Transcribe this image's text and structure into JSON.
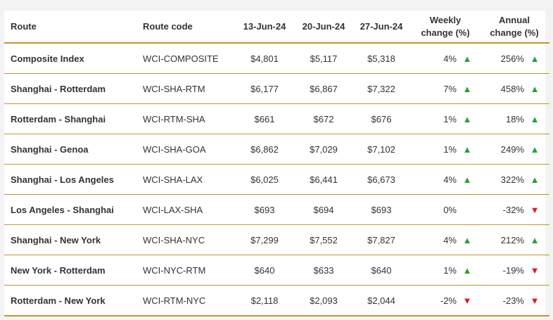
{
  "headers": {
    "route": "Route",
    "route_code": "Route code",
    "date1": "13-Jun-24",
    "date2": "20-Jun-24",
    "date3": "27-Jun-24",
    "weekly_l1": "Weekly",
    "weekly_l2": "change (%)",
    "annual_l1": "Annual",
    "annual_l2": "change (%)"
  },
  "colors": {
    "accent_border": "#c0962f",
    "up": "#1fa52c",
    "down": "#e01a1a"
  },
  "rows": [
    {
      "route": "Composite Index",
      "code": "WCI-COMPOSITE",
      "d1": "$4,801",
      "d2": "$5,117",
      "d3": "$5,318",
      "weekly": "4%",
      "weekly_dir": "up",
      "annual": "256%",
      "annual_dir": "up"
    },
    {
      "route": "Shanghai - Rotterdam",
      "code": "WCI-SHA-RTM",
      "d1": "$6,177",
      "d2": "$6,867",
      "d3": "$7,322",
      "weekly": "7%",
      "weekly_dir": "up",
      "annual": "458%",
      "annual_dir": "up"
    },
    {
      "route": "Rotterdam - Shanghai",
      "code": "WCI-RTM-SHA",
      "d1": "$661",
      "d2": "$672",
      "d3": "$676",
      "weekly": "1%",
      "weekly_dir": "up",
      "annual": "18%",
      "annual_dir": "up"
    },
    {
      "route": "Shanghai - Genoa",
      "code": "WCI-SHA-GOA",
      "d1": "$6,862",
      "d2": "$7,029",
      "d3": "$7,102",
      "weekly": "1%",
      "weekly_dir": "up",
      "annual": "249%",
      "annual_dir": "up"
    },
    {
      "route": "Shanghai - Los Angeles",
      "code": "WCI-SHA-LAX",
      "d1": "$6,025",
      "d2": "$6,441",
      "d3": "$6,673",
      "weekly": "4%",
      "weekly_dir": "up",
      "annual": "322%",
      "annual_dir": "up"
    },
    {
      "route": "Los Angeles - Shanghai",
      "code": "WCI-LAX-SHA",
      "d1": "$693",
      "d2": "$694",
      "d3": "$693",
      "weekly": "0%",
      "weekly_dir": "none",
      "annual": "-32%",
      "annual_dir": "down"
    },
    {
      "route": "Shanghai - New York",
      "code": "WCI-SHA-NYC",
      "d1": "$7,299",
      "d2": "$7,552",
      "d3": "$7,827",
      "weekly": "4%",
      "weekly_dir": "up",
      "annual": "212%",
      "annual_dir": "up"
    },
    {
      "route": "New York - Rotterdam",
      "code": "WCI-NYC-RTM",
      "d1": "$640",
      "d2": "$633",
      "d3": "$640",
      "weekly": "1%",
      "weekly_dir": "up",
      "annual": "-19%",
      "annual_dir": "down"
    },
    {
      "route": "Rotterdam - New York",
      "code": "WCI-RTM-NYC",
      "d1": "$2,118",
      "d2": "$2,093",
      "d3": "$2,044",
      "weekly": "-2%",
      "weekly_dir": "down",
      "annual": "-23%",
      "annual_dir": "down"
    }
  ]
}
